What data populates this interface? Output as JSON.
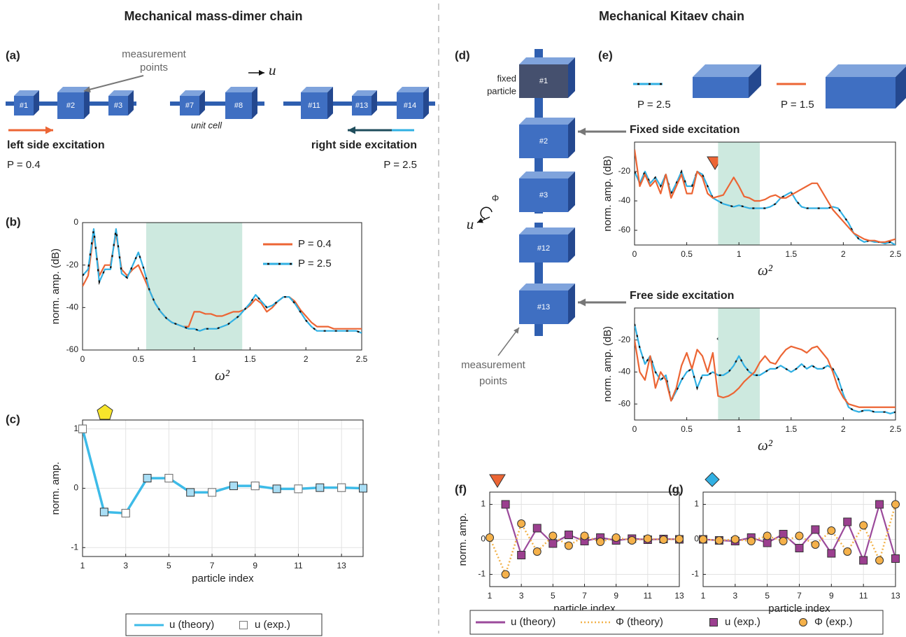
{
  "headings": [
    "Mechanical mass-dimer chain",
    "Mechanical Kitaev chain"
  ],
  "panel_labels": [
    "(a)",
    "(b)",
    "(c)",
    "(d)",
    "(e)",
    "(f)",
    "(g)"
  ],
  "schematic_a": {
    "measurement_points": [
      "measurement",
      "points"
    ],
    "displacement": "u",
    "particles": [
      "#1",
      "#2",
      "#3",
      "#7",
      "#8",
      "#11",
      "#13",
      "#14"
    ],
    "unit_cell": "unit cell",
    "left_excitation": "left side excitation",
    "left_p": "P = 0.4",
    "right_excitation": "right side excitation",
    "right_p": "P = 2.5"
  },
  "schematic_d": {
    "fixed_particle": [
      "fixed",
      "particle"
    ],
    "particles": [
      "#1",
      "#2",
      "#3",
      "#12",
      "#13"
    ],
    "rotation": "Φ",
    "displacement": "u",
    "measurement_points": [
      "measurement",
      "points"
    ]
  },
  "chart_data": [
    {
      "type": "line",
      "xlabel": "ω²",
      "ylabel": "norm. amp. (dB)",
      "xlim": [
        0,
        2.5
      ],
      "ylim": [
        -60,
        0
      ],
      "xticks": [
        0,
        0.5,
        1,
        1.5,
        2,
        2.5
      ],
      "yticks": [
        -60,
        -40,
        -20,
        0
      ],
      "band": [
        0.57,
        1.43
      ],
      "band_color": "#cde9df",
      "grid": false,
      "legend": "upper right",
      "x": [
        0,
        0.05,
        0.1,
        0.15,
        0.2,
        0.25,
        0.3,
        0.35,
        0.4,
        0.45,
        0.5,
        0.55,
        0.6,
        0.65,
        0.7,
        0.75,
        0.8,
        0.85,
        0.9,
        0.95,
        1,
        1.05,
        1.1,
        1.15,
        1.2,
        1.25,
        1.3,
        1.35,
        1.4,
        1.45,
        1.5,
        1.55,
        1.6,
        1.65,
        1.7,
        1.75,
        1.8,
        1.85,
        1.9,
        1.95,
        2,
        2.05,
        2.1,
        2.15,
        2.2,
        2.25,
        2.3,
        2.35,
        2.4,
        2.45,
        2.5
      ],
      "series": [
        {
          "name": "P = 0.4",
          "color": "#ec6534",
          "values": [
            -30,
            -25,
            -5,
            -25,
            -20,
            -20,
            -5,
            -22,
            -25,
            -22,
            -20,
            -26,
            -32,
            -38,
            -42,
            -45,
            -47,
            -48,
            -49,
            -49,
            -42,
            -42,
            -43,
            -43,
            -44,
            -44,
            -43,
            -42,
            -42,
            -41,
            -39,
            -36,
            -38,
            -42,
            -40,
            -37,
            -35,
            -35,
            -37,
            -41,
            -44,
            -47,
            -49,
            -49,
            -49,
            -50,
            -50,
            -50,
            -50,
            -50,
            -50
          ]
        },
        {
          "name": "P = 2.5",
          "color": "#31b0e3",
          "dash_color": "#111111",
          "values": [
            -25,
            -22,
            -3,
            -28,
            -22,
            -22,
            -3,
            -24,
            -26,
            -20,
            -14,
            -22,
            -32,
            -38,
            -42,
            -45,
            -47,
            -48,
            -49,
            -50,
            -50,
            -51,
            -50,
            -50,
            -50,
            -49,
            -48,
            -46,
            -44,
            -41,
            -38,
            -34,
            -37,
            -40,
            -39,
            -37,
            -35,
            -35,
            -38,
            -42,
            -46,
            -49,
            -51,
            -51,
            -51,
            -51,
            -51,
            -51,
            -51,
            -51,
            -52
          ]
        }
      ]
    },
    {
      "type": "line",
      "xlabel": "particle index",
      "ylabel": "norm. amp.",
      "xlim": [
        1,
        14
      ],
      "ylim": [
        -1.15,
        1.15
      ],
      "xticks": [
        1,
        3,
        5,
        7,
        9,
        11,
        13
      ],
      "yticks": [
        -1,
        0,
        1
      ],
      "grid": true,
      "legend": "below",
      "series": [
        {
          "name": "u (theory)",
          "color": "#3dbbe8",
          "marker": "square",
          "marker_fill": "#a9def5",
          "x": [
            1,
            2,
            3,
            4,
            5,
            6,
            7,
            8,
            9,
            10,
            11,
            12,
            13,
            14
          ],
          "values": [
            1,
            -0.4,
            -0.42,
            0.17,
            0.17,
            -0.07,
            -0.07,
            0.04,
            0.04,
            -0.01,
            -0.01,
            0.01,
            0.01,
            0
          ]
        },
        {
          "name": "u (exp.)",
          "color": "#777777",
          "line": "none",
          "marker": "square",
          "marker_fill": "#ffffff",
          "x": [
            1,
            3,
            5,
            7,
            9,
            11,
            13
          ],
          "values": [
            1,
            -0.42,
            0.17,
            -0.07,
            0.04,
            -0.01,
            0.01
          ]
        }
      ]
    },
    {
      "type": "line",
      "title": "Fixed side excitation",
      "xlabel": "ω²",
      "ylabel": "norm. amp. (dB)",
      "xlim": [
        0,
        2.5
      ],
      "ylim": [
        -70,
        0
      ],
      "xticks": [
        0,
        0.5,
        1,
        1.5,
        2,
        2.5
      ],
      "yticks": [
        -60,
        -40,
        -20
      ],
      "band": [
        0.8,
        1.2
      ],
      "band_color": "#cde9df",
      "grid": false,
      "legend": "above",
      "x": [
        0,
        0.05,
        0.1,
        0.15,
        0.2,
        0.25,
        0.3,
        0.35,
        0.4,
        0.45,
        0.5,
        0.55,
        0.6,
        0.65,
        0.7,
        0.75,
        0.8,
        0.85,
        0.9,
        0.95,
        1,
        1.05,
        1.1,
        1.15,
        1.2,
        1.25,
        1.3,
        1.35,
        1.4,
        1.45,
        1.5,
        1.55,
        1.6,
        1.65,
        1.7,
        1.75,
        1.8,
        1.85,
        1.9,
        1.95,
        2,
        2.05,
        2.1,
        2.15,
        2.2,
        2.25,
        2.3,
        2.35,
        2.4,
        2.45,
        2.5
      ],
      "series": [
        {
          "name": "P = 2.5",
          "color": "#31b0e3",
          "dash_color": "#111111",
          "values": [
            -20,
            -28,
            -20,
            -28,
            -24,
            -30,
            -22,
            -35,
            -28,
            -20,
            -30,
            -30,
            -20,
            -22,
            -30,
            -38,
            -40,
            -42,
            -43,
            -44,
            -43,
            -44,
            -45,
            -45,
            -45,
            -45,
            -44,
            -42,
            -38,
            -36,
            -34,
            -40,
            -44,
            -45,
            -45,
            -45,
            -45,
            -45,
            -44,
            -45,
            -50,
            -55,
            -62,
            -66,
            -68,
            -67,
            -68,
            -68,
            -69,
            -68,
            -70
          ]
        },
        {
          "name": "P = 1.5",
          "color": "#ec6534",
          "values": [
            -5,
            -30,
            -22,
            -30,
            -26,
            -35,
            -22,
            -38,
            -30,
            -22,
            -35,
            -35,
            -20,
            -24,
            -35,
            -38,
            -37,
            -36,
            -30,
            -24,
            -30,
            -37,
            -38,
            -40,
            -40,
            -39,
            -37,
            -36,
            -38,
            -38,
            -36,
            -34,
            -32,
            -30,
            -28,
            -28,
            -34,
            -40,
            -46,
            -50,
            -54,
            -58,
            -62,
            -64,
            -66,
            -67,
            -67,
            -68,
            -68,
            -67,
            -66
          ]
        }
      ]
    },
    {
      "type": "line",
      "title": "Free side excitation",
      "xlabel": "ω²",
      "ylabel": "norm. amp. (dB)",
      "xlim": [
        0,
        2.5
      ],
      "ylim": [
        -70,
        0
      ],
      "xticks": [
        0,
        0.5,
        1,
        1.5,
        2,
        2.5
      ],
      "yticks": [
        -60,
        -40,
        -20
      ],
      "band": [
        0.8,
        1.2
      ],
      "band_color": "#cde9df",
      "grid": false,
      "x": [
        0,
        0.05,
        0.1,
        0.15,
        0.2,
        0.25,
        0.3,
        0.35,
        0.4,
        0.45,
        0.5,
        0.55,
        0.6,
        0.65,
        0.7,
        0.75,
        0.8,
        0.85,
        0.9,
        0.95,
        1,
        1.05,
        1.1,
        1.15,
        1.2,
        1.25,
        1.3,
        1.35,
        1.4,
        1.45,
        1.5,
        1.55,
        1.6,
        1.65,
        1.7,
        1.75,
        1.8,
        1.85,
        1.9,
        1.95,
        2,
        2.05,
        2.1,
        2.15,
        2.2,
        2.25,
        2.3,
        2.35,
        2.4,
        2.45,
        2.5
      ],
      "series": [
        {
          "color": "#31b0e3",
          "dash_color": "#111111",
          "values": [
            -10,
            -25,
            -35,
            -30,
            -40,
            -45,
            -42,
            -58,
            -52,
            -45,
            -40,
            -38,
            -50,
            -42,
            -42,
            -40,
            -42,
            -42,
            -40,
            -36,
            -30,
            -36,
            -40,
            -42,
            -42,
            -40,
            -38,
            -38,
            -36,
            -38,
            -40,
            -38,
            -35,
            -38,
            -36,
            -38,
            -38,
            -36,
            -38,
            -44,
            -54,
            -62,
            -64,
            -65,
            -64,
            -64,
            -65,
            -65,
            -65,
            -66,
            -65
          ]
        },
        {
          "color": "#ec6534",
          "values": [
            -20,
            -40,
            -45,
            -30,
            -50,
            -40,
            -45,
            -58,
            -50,
            -36,
            -28,
            -38,
            -26,
            -30,
            -40,
            -28,
            -55,
            -56,
            -55,
            -53,
            -50,
            -46,
            -43,
            -40,
            -34,
            -30,
            -34,
            -35,
            -30,
            -26,
            -24,
            -25,
            -26,
            -28,
            -25,
            -24,
            -28,
            -32,
            -40,
            -50,
            -56,
            -60,
            -61,
            -62,
            -62,
            -62,
            -62,
            -62,
            -62,
            -62,
            -62
          ]
        }
      ]
    },
    {
      "type": "line",
      "xlabel": "particle index",
      "ylabel": "norm. amp.",
      "xlim": [
        1,
        13
      ],
      "ylim": [
        -1.35,
        1.35
      ],
      "xticks": [
        1,
        3,
        5,
        7,
        9,
        11,
        13
      ],
      "yticks": [
        -1,
        0,
        1
      ],
      "grid": true,
      "legend": "below",
      "series": [
        {
          "name": "u (theory)",
          "color": "#9b4a9b",
          "x": [
            2,
            3,
            4,
            5,
            6,
            7,
            8,
            9,
            10,
            11,
            12,
            13
          ],
          "values": [
            1,
            -0.45,
            0.32,
            -0.12,
            0.13,
            -0.05,
            0.05,
            -0.03,
            0.02,
            -0.01,
            0.01,
            0
          ]
        },
        {
          "name": "Φ (theory)",
          "color": "#f2b24a",
          "line": "dotted",
          "x": [
            1,
            2,
            3,
            4,
            5,
            6,
            7,
            8,
            9,
            10,
            11,
            12,
            13
          ],
          "values": [
            0.05,
            -1,
            0.45,
            -0.35,
            0.1,
            -0.18,
            0.1,
            -0.07,
            0.05,
            -0.03,
            0.02,
            -0.01,
            0.01
          ]
        },
        {
          "name": "u (exp.)",
          "color": "#333333",
          "line": "none",
          "marker": "square",
          "marker_fill": "#9b3f8f",
          "x": [
            2,
            3,
            4,
            5,
            6,
            7,
            8,
            9,
            10,
            11,
            12,
            13
          ],
          "values": [
            1,
            -0.45,
            0.32,
            -0.12,
            0.13,
            -0.05,
            0.05,
            -0.03,
            0.02,
            -0.01,
            0.01,
            0
          ]
        },
        {
          "name": "Φ (exp.)",
          "color": "#333333",
          "line": "none",
          "marker": "circle",
          "marker_fill": "#f5b14a",
          "x": [
            1,
            2,
            3,
            4,
            5,
            6,
            7,
            8,
            9,
            10,
            11,
            12,
            13
          ],
          "values": [
            0.05,
            -1,
            0.45,
            -0.35,
            0.1,
            -0.18,
            0.1,
            -0.07,
            0.05,
            -0.03,
            0.02,
            -0.01,
            0.01
          ]
        }
      ]
    },
    {
      "type": "line",
      "xlabel": "particle index",
      "xlim": [
        1,
        13
      ],
      "ylim": [
        -1.35,
        1.35
      ],
      "xticks": [
        1,
        3,
        5,
        7,
        9,
        11,
        13
      ],
      "yticks": [
        -1,
        0,
        1
      ],
      "grid": true,
      "series": [
        {
          "color": "#9b4a9b",
          "x": [
            1,
            2,
            3,
            4,
            5,
            6,
            7,
            8,
            9,
            10,
            11,
            12,
            13
          ],
          "values": [
            0,
            -0.03,
            -0.05,
            0.05,
            -0.1,
            0.15,
            -0.25,
            0.28,
            -0.4,
            0.5,
            -0.6,
            1,
            -0.55
          ]
        },
        {
          "color": "#f2b24a",
          "line": "dotted",
          "x": [
            1,
            2,
            3,
            4,
            5,
            6,
            7,
            8,
            9,
            10,
            11,
            12,
            13
          ],
          "values": [
            0,
            -0.03,
            0,
            -0.05,
            0.1,
            -0.05,
            0.1,
            -0.15,
            0.25,
            -0.35,
            0.4,
            -0.6,
            1
          ]
        },
        {
          "color": "#333333",
          "line": "none",
          "marker": "square",
          "marker_fill": "#9b3f8f",
          "x": [
            1,
            2,
            3,
            4,
            5,
            6,
            7,
            8,
            9,
            10,
            11,
            12,
            13
          ],
          "values": [
            0,
            -0.03,
            -0.05,
            0.05,
            -0.1,
            0.15,
            -0.25,
            0.28,
            -0.4,
            0.5,
            -0.6,
            1,
            -0.55
          ]
        },
        {
          "color": "#333333",
          "line": "none",
          "marker": "circle",
          "marker_fill": "#f5b14a",
          "x": [
            1,
            2,
            3,
            4,
            5,
            6,
            7,
            8,
            9,
            10,
            11,
            12,
            13
          ],
          "values": [
            0,
            -0.03,
            0,
            -0.05,
            0.1,
            -0.05,
            0.1,
            -0.15,
            0.25,
            -0.35,
            0.4,
            -0.6,
            1
          ]
        }
      ]
    }
  ]
}
